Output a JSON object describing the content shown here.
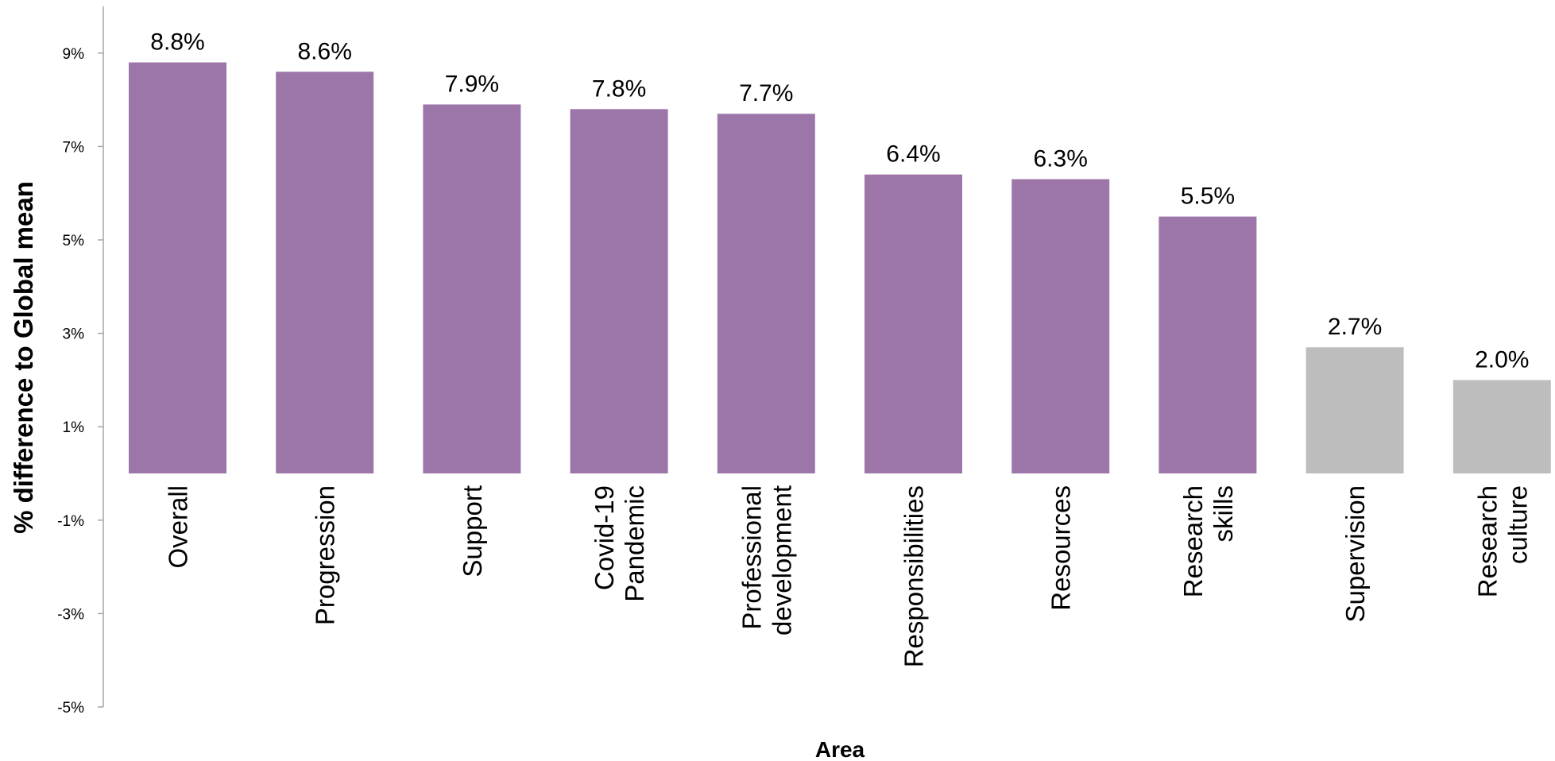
{
  "chart_data": {
    "type": "bar",
    "title": "",
    "xlabel": "Area",
    "ylabel": "% difference to Global mean",
    "ylim": [
      -5,
      10
    ],
    "yticks": [
      -5,
      -3,
      -1,
      1,
      3,
      5,
      7,
      9
    ],
    "ytick_labels": [
      "-5%",
      "-3%",
      "-1%",
      "1%",
      "3%",
      "5%",
      "7%",
      "9%"
    ],
    "grid": false,
    "legend": "none",
    "categories": [
      [
        "Overall"
      ],
      [
        "Progression"
      ],
      [
        "Support"
      ],
      [
        "Covid-19",
        "Pandemic"
      ],
      [
        "Professional",
        "development"
      ],
      [
        "Responsibilities"
      ],
      [
        "Resources"
      ],
      [
        "Research",
        "skills"
      ],
      [
        "Supervision"
      ],
      [
        "Research",
        "culture"
      ]
    ],
    "values": [
      8.8,
      8.6,
      7.9,
      7.8,
      7.7,
      6.4,
      6.3,
      5.5,
      2.7,
      2.0
    ],
    "data_labels": [
      "8.8%",
      "8.6%",
      "7.9%",
      "7.8%",
      "7.7%",
      "6.4%",
      "6.3%",
      "5.5%",
      "2.7%",
      "2.0%"
    ],
    "bar_colors": [
      "#9d76a9",
      "#9d76a9",
      "#9d76a9",
      "#9d76a9",
      "#9d76a9",
      "#9d76a9",
      "#9d76a9",
      "#9d76a9",
      "#bdbdbd",
      "#bdbdbd"
    ],
    "axis_color": "#a6a6a6"
  }
}
